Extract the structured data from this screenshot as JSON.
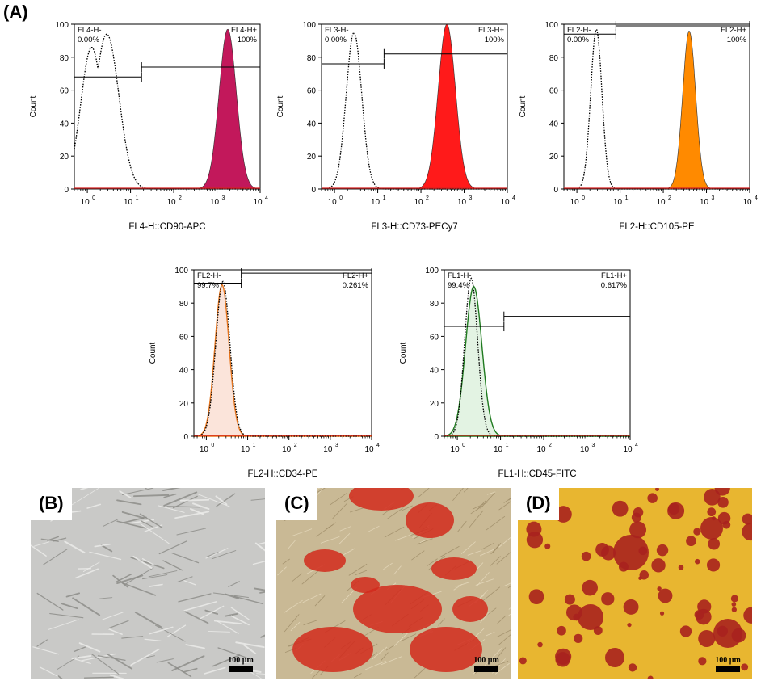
{
  "figure_label": "(A)",
  "chart_data": [
    {
      "type": "histogram",
      "title": "",
      "xlabel": "FL4-H::CD90-APC",
      "ylabel": "Count",
      "xscale": "log",
      "xlim": [
        0.5,
        10000
      ],
      "ylim": [
        0,
        100
      ],
      "x_ticks": [
        "10",
        "10",
        "10",
        "10",
        "10"
      ],
      "x_tick_exponents": [
        "0",
        "1",
        "2",
        "3",
        "4"
      ],
      "y_ticks": [
        "0",
        "20",
        "40",
        "60",
        "80",
        "100"
      ],
      "fill_color": "#c2185b",
      "gate_left": {
        "name": "FL4-H-",
        "percent": "0.00%",
        "range": [
          0.5,
          18
        ],
        "y": 68
      },
      "gate_right": {
        "name": "FL4-H+",
        "percent": "100%",
        "range": [
          18,
          10000
        ],
        "y": 74
      },
      "control": {
        "peak_log": 0.45,
        "width_log": 0.28,
        "peak": 94,
        "shoulder_log": 0.1,
        "shoulder": 86
      },
      "sample": {
        "peak_log": 3.25,
        "width_log": 0.2,
        "peak": 97
      }
    },
    {
      "type": "histogram",
      "title": "",
      "xlabel": "FL3-H::CD73-PECy7",
      "ylabel": "Count",
      "xscale": "log",
      "xlim": [
        0.5,
        10000
      ],
      "ylim": [
        0,
        100
      ],
      "x_ticks": [
        "10",
        "10",
        "10",
        "10",
        "10"
      ],
      "x_tick_exponents": [
        "0",
        "1",
        "2",
        "3",
        "4"
      ],
      "y_ticks": [
        "0",
        "20",
        "40",
        "60",
        "80",
        "100"
      ],
      "fill_color": "#ff1a1a",
      "gate_left": {
        "name": "FL3-H-",
        "percent": "0.00%",
        "range": [
          0.5,
          14
        ],
        "y": 76
      },
      "gate_right": {
        "name": "FL3-H+",
        "percent": "100%",
        "range": [
          14,
          10000
        ],
        "y": 82
      },
      "control": {
        "peak_log": 0.45,
        "width_log": 0.18,
        "peak": 95
      },
      "sample": {
        "peak_log": 2.6,
        "width_log": 0.2,
        "peak": 100
      }
    },
    {
      "type": "histogram",
      "title": "",
      "xlabel": "FL2-H::CD105-PE",
      "ylabel": "Count",
      "xscale": "log",
      "xlim": [
        0.5,
        10000
      ],
      "ylim": [
        0,
        100
      ],
      "x_ticks": [
        "10",
        "10",
        "10",
        "10",
        "10"
      ],
      "x_tick_exponents": [
        "0",
        "1",
        "2",
        "3",
        "4"
      ],
      "y_ticks": [
        "0",
        "20",
        "40",
        "60",
        "80",
        "100"
      ],
      "fill_color": "#ff8a00",
      "gate_left": {
        "name": "FL2-H-",
        "percent": "0.00%",
        "range": [
          0.5,
          8
        ],
        "y": 94
      },
      "gate_right": {
        "name": "FL2-H+",
        "percent": "100%",
        "range": [
          8,
          10000
        ],
        "y": 99
      },
      "control": {
        "peak_log": 0.45,
        "width_log": 0.13,
        "peak": 97
      },
      "sample": {
        "peak_log": 2.6,
        "width_log": 0.15,
        "peak": 96
      }
    },
    {
      "type": "histogram",
      "title": "",
      "xlabel": "FL2-H::CD34-PE",
      "ylabel": "Count",
      "xscale": "log",
      "xlim": [
        0.5,
        10000
      ],
      "ylim": [
        0,
        100
      ],
      "x_ticks": [
        "10",
        "10",
        "10",
        "10",
        "10"
      ],
      "x_tick_exponents": [
        "0",
        "1",
        "2",
        "3",
        "4"
      ],
      "y_ticks": [
        "0",
        "20",
        "40",
        "60",
        "80",
        "100"
      ],
      "fill_color": "#fbe4da",
      "line_color": "#e8761e",
      "gate_left": {
        "name": "FL2-H-",
        "percent": "99.7%",
        "range": [
          0.5,
          7
        ],
        "y": 92
      },
      "gate_right": {
        "name": "FL2-H+",
        "percent": "0.261%",
        "range": [
          7,
          10000
        ],
        "y": 98
      },
      "control": {
        "peak_log": 0.4,
        "width_log": 0.17,
        "peak": 93
      },
      "sample": {
        "peak_log": 0.38,
        "width_log": 0.17,
        "peak": 91
      }
    },
    {
      "type": "histogram",
      "title": "",
      "xlabel": "FL1-H::CD45-FITC",
      "ylabel": "Count",
      "xscale": "log",
      "xlim": [
        0.5,
        10000
      ],
      "ylim": [
        0,
        100
      ],
      "x_ticks": [
        "10",
        "10",
        "10",
        "10",
        "10"
      ],
      "x_tick_exponents": [
        "0",
        "1",
        "2",
        "3",
        "4"
      ],
      "y_ticks": [
        "0",
        "20",
        "40",
        "60",
        "80",
        "100"
      ],
      "fill_color": "#e3f3e3",
      "line_color": "#1f7a1f",
      "gate_left": {
        "name": "FL1-H-",
        "percent": "99.4%",
        "range": [
          0.5,
          12
        ],
        "y": 66
      },
      "gate_right": {
        "name": "FL1-H+",
        "percent": "0.617%",
        "range": [
          12,
          10000
        ],
        "y": 72
      },
      "control": {
        "peak_log": 0.32,
        "width_log": 0.15,
        "peak": 95
      },
      "sample": {
        "peak_log": 0.38,
        "width_log": 0.19,
        "peak": 90
      }
    }
  ],
  "photos": [
    {
      "label": "(B)",
      "scale": "100 µm",
      "background": "#c9c9c7",
      "blob_color": "#8a8a86"
    },
    {
      "label": "(C)",
      "scale": "100 µm",
      "background": "#c9b995",
      "blob_color": "#d22a1c"
    },
    {
      "label": "(D)",
      "scale": "100 µm",
      "background": "#e8b630",
      "blob_color": "#a8221e"
    }
  ]
}
